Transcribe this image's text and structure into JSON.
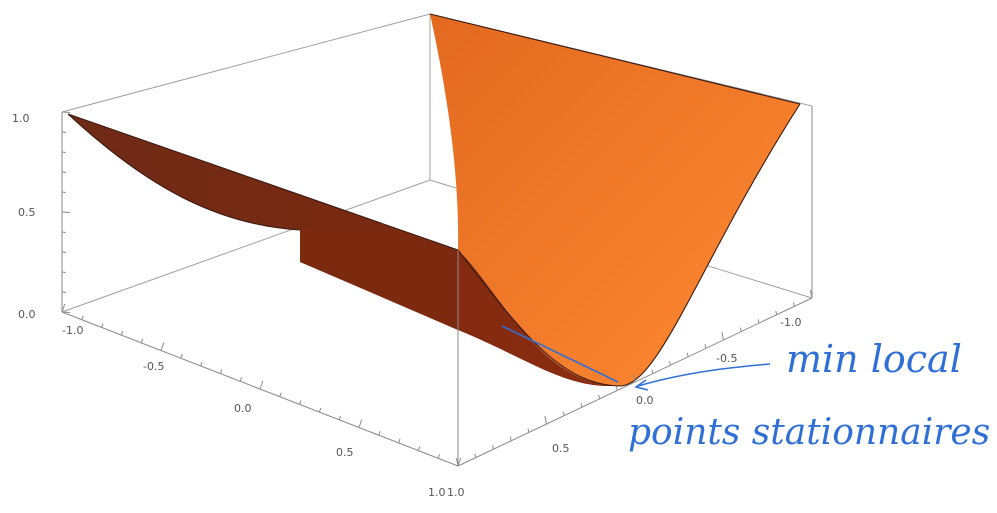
{
  "chart_data": {
    "type": "surface3d",
    "function": "z = x^2",
    "x_range": [
      -1.0,
      1.0
    ],
    "y_range": [
      -1.0,
      1.0
    ],
    "z_range": [
      0.0,
      1.0
    ],
    "z_ticks": [
      "0.0",
      "0.5",
      "1.0"
    ],
    "left_axis_ticks": [
      "-1.0",
      "-0.5",
      "0.0",
      "0.5",
      "1.0"
    ],
    "right_axis_ticks": [
      "-1.0",
      "-0.5",
      "0.0",
      "0.5",
      "1.0"
    ],
    "surface_color": "#f07a2a",
    "surface_dark": "#7a2a0f",
    "box_color": "#9a9a9a",
    "annotations": [
      {
        "id": "min-local",
        "text": "min local",
        "color": "#2f6fd6"
      },
      {
        "id": "points-stationnaires",
        "text": "points stationnaires",
        "color": "#2f6fd6"
      }
    ]
  }
}
